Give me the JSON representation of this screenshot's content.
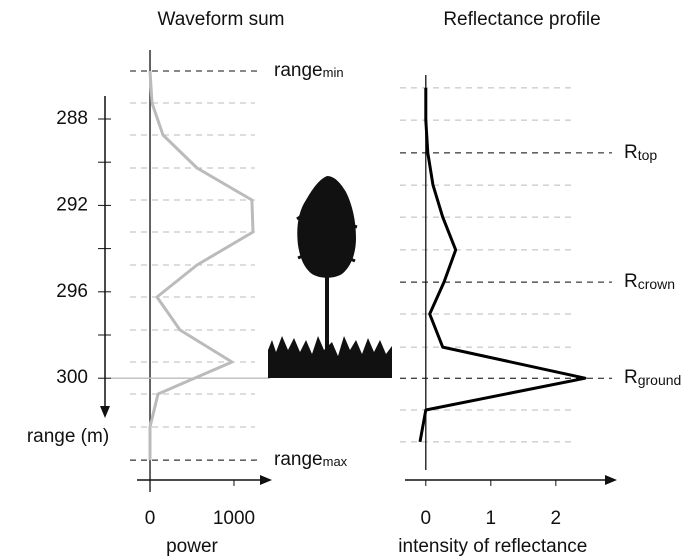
{
  "chart_data": [
    {
      "type": "line",
      "title": "Waveform sum",
      "xlabel": "power",
      "ylabel": "range (m)",
      "xlim": [
        -155,
        1429
      ],
      "xticks": [
        0,
        1000
      ],
      "ylim": [
        285,
        305
      ],
      "yticks": [
        288,
        292,
        296,
        300
      ],
      "yminor_ticks": [
        290,
        294,
        298
      ],
      "series": [
        {
          "color": "#bbbbbb",
          "values": [
            0,
            24,
            155,
            560,
            1214,
            1226,
            560,
            83,
            357,
            976,
            95,
            0,
            0
          ],
          "y": [
            285.78,
            287.26,
            288.74,
            290.27,
            291.75,
            293.23,
            294.76,
            296.24,
            297.77,
            299.25,
            300.73,
            302.26,
            303.79
          ]
        }
      ],
      "annotations": [
        {
          "text": "range",
          "sub": "min",
          "y": 285.78
        },
        {
          "text": "range",
          "sub": "max",
          "y": 303.79
        }
      ]
    },
    {
      "type": "line",
      "title": "Reflectance profile",
      "xlabel": "intensity of reflectance",
      "xlim": [
        -0.32,
        2.91
      ],
      "xticks": [
        0,
        1,
        2
      ],
      "ylim": [
        285,
        305
      ],
      "series": [
        {
          "color": "#000000",
          "values": [
            0,
            0,
            0.03,
            0.11,
            0.26,
            0.46,
            0.28,
            0.06,
            0.26,
            2.45,
            0,
            -0.09
          ],
          "y": [
            286.56,
            288.05,
            289.57,
            291.06,
            292.54,
            294.06,
            295.55,
            297.03,
            298.56,
            300.0,
            301.47,
            302.95
          ]
        }
      ],
      "annotations": [
        {
          "text": "R",
          "sub": "top",
          "y": 289.57
        },
        {
          "text": "R",
          "sub": "crown",
          "y": 295.55
        },
        {
          "text": "R",
          "sub": "ground",
          "y": 300.0
        }
      ]
    }
  ]
}
